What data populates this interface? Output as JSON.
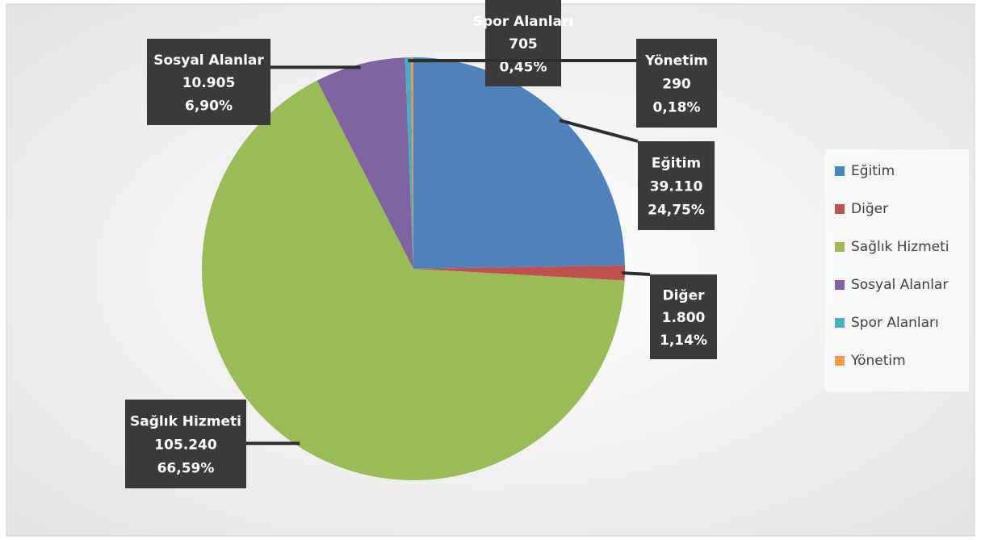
{
  "chart_data": {
    "type": "pie",
    "categories": [
      "Eğitim",
      "Diğer",
      "Sağlık Hizmeti",
      "Sosyal Alanlar",
      "Spor Alanları",
      "Yönetim"
    ],
    "values": [
      39110,
      1800,
      105240,
      10905,
      705,
      290
    ],
    "value_labels": [
      "39.110",
      "1.800",
      "105.240",
      "10.905",
      "705",
      "290"
    ],
    "percent_labels": [
      "24,75%",
      "1,14%",
      "66,59%",
      "6,90%",
      "0,45%",
      "0,18%"
    ],
    "colors": [
      "#4f81bd",
      "#c0504d",
      "#9bbb59",
      "#8064a2",
      "#4bacc6",
      "#f79646"
    ],
    "legend": "right"
  }
}
